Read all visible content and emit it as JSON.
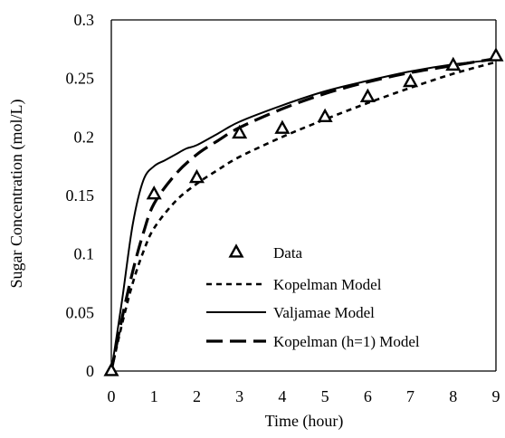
{
  "chart_data": {
    "type": "line",
    "xlabel": "Time (hour)",
    "ylabel": "Sugar Concentration (mol/L)",
    "xlim": [
      0,
      9
    ],
    "ylim": [
      0,
      0.3
    ],
    "xticks": [
      "0",
      "1",
      "2",
      "3",
      "4",
      "5",
      "6",
      "7",
      "8",
      "9"
    ],
    "yticks": [
      "0",
      "0.05",
      "0.1",
      "0.15",
      "0.2",
      "0.25",
      "0.3"
    ],
    "grid": false,
    "legend_position": "bottom-right",
    "series": [
      {
        "name": "Data",
        "kind": "markers",
        "marker": "triangle-open",
        "x": [
          0,
          1,
          2,
          3,
          4,
          5,
          6,
          7,
          8,
          9
        ],
        "y": [
          0,
          0.151,
          0.165,
          0.203,
          0.207,
          0.217,
          0.234,
          0.247,
          0.261,
          0.269
        ]
      },
      {
        "name": "Kopelman Model",
        "kind": "line",
        "dash": "short",
        "x": [
          0,
          0.25,
          0.5,
          0.75,
          1,
          1.5,
          2,
          2.5,
          3,
          4,
          5,
          6,
          7,
          8,
          9
        ],
        "y": [
          0,
          0.04,
          0.075,
          0.102,
          0.122,
          0.145,
          0.16,
          0.172,
          0.183,
          0.2,
          0.215,
          0.229,
          0.242,
          0.254,
          0.264
        ]
      },
      {
        "name": "Valjamae Model",
        "kind": "line",
        "dash": "solid",
        "x": [
          0,
          0.25,
          0.5,
          0.75,
          1,
          1.25,
          1.5,
          1.75,
          2,
          2.5,
          3,
          4,
          5,
          6,
          7,
          8,
          9
        ],
        "y": [
          0,
          0.06,
          0.125,
          0.163,
          0.175,
          0.18,
          0.185,
          0.19,
          0.193,
          0.203,
          0.213,
          0.227,
          0.239,
          0.248,
          0.256,
          0.262,
          0.266
        ]
      },
      {
        "name": "Kopelman (h=1) Model",
        "kind": "line",
        "dash": "long",
        "x": [
          0,
          0.25,
          0.5,
          0.75,
          1,
          1.5,
          2,
          2.5,
          3,
          4,
          5,
          6,
          7,
          8,
          9
        ],
        "y": [
          0,
          0.045,
          0.085,
          0.118,
          0.143,
          0.168,
          0.185,
          0.197,
          0.208,
          0.224,
          0.237,
          0.247,
          0.255,
          0.261,
          0.267
        ]
      }
    ]
  }
}
